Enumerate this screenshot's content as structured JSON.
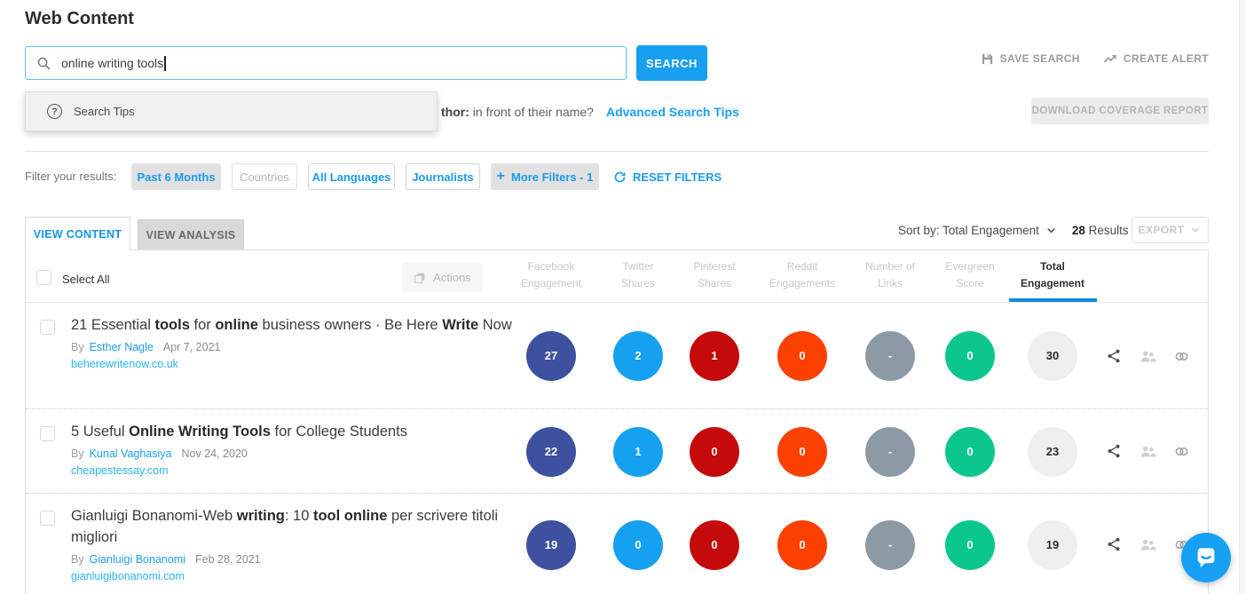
{
  "page": {
    "title": "Web Content"
  },
  "search": {
    "value": "online writing tools",
    "button": "SEARCH",
    "tips_label": "Search Tips",
    "hint_bold": "thor:",
    "hint_rest": " in front of their name?",
    "advanced_link": "Advanced Search Tips"
  },
  "header_actions": {
    "save_search": "SAVE SEARCH",
    "create_alert": "CREATE ALERT",
    "download_report": "DOWNLOAD COVERAGE REPORT"
  },
  "filters": {
    "label": "Filter your results:",
    "time": "Past 6 Months",
    "countries": "Countries",
    "languages": "All Languages",
    "journalists": "Journalists",
    "more_plus": "+",
    "more": "More Filters - 1",
    "reset": "RESET FILTERS"
  },
  "tabs": {
    "content": "VIEW CONTENT",
    "analysis": "VIEW ANALYSIS"
  },
  "toolbar": {
    "sort_label": "Sort by: Total Engagement",
    "results_count": "28",
    "results_word": "Results",
    "export": "EXPORT"
  },
  "table": {
    "select_all": "Select All",
    "actions": "Actions",
    "columns": [
      {
        "key": "facebook",
        "lines": [
          "Facebook",
          "Engagement"
        ],
        "color": "#3d519e"
      },
      {
        "key": "twitter",
        "lines": [
          "Twitter",
          "Shares"
        ],
        "color": "#15a0f0"
      },
      {
        "key": "pinterest",
        "lines": [
          "Pinterest",
          "Shares"
        ],
        "color": "#c40a0a"
      },
      {
        "key": "reddit",
        "lines": [
          "Reddit",
          "Engagements"
        ],
        "color": "#fb4000"
      },
      {
        "key": "links",
        "lines": [
          "Number of",
          "Links"
        ],
        "color": "#8b9aa4"
      },
      {
        "key": "evergreen",
        "lines": [
          "Evergreen",
          "Score"
        ],
        "color": "#0bc78e"
      },
      {
        "key": "total",
        "lines": [
          "Total",
          "Engagement"
        ],
        "color": "#efefef",
        "active": true
      }
    ],
    "rows": [
      {
        "title": [
          {
            "t": "21 Essential ",
            "b": false
          },
          {
            "t": "tools",
            "b": true
          },
          {
            "t": " for ",
            "b": false
          },
          {
            "t": "online",
            "b": true
          },
          {
            "t": " business owners · Be Here ",
            "b": false
          },
          {
            "t": "Write",
            "b": true
          },
          {
            "t": " Now",
            "b": false
          }
        ],
        "by": "By",
        "author": "Esther Nagle",
        "date": "Apr 7, 2021",
        "domain": "beherewritenow.co.uk",
        "values": [
          "27",
          "2",
          "1",
          "0",
          "-",
          "0",
          "30"
        ]
      },
      {
        "title": [
          {
            "t": "5 Useful ",
            "b": false
          },
          {
            "t": "Online Writing Tools",
            "b": true
          },
          {
            "t": " for College Students",
            "b": false
          }
        ],
        "by": "By",
        "author": "Kunal Vaghasiya",
        "date": "Nov 24, 2020",
        "domain": "cheapestessay.com",
        "values": [
          "22",
          "1",
          "0",
          "0",
          "-",
          "0",
          "23"
        ]
      },
      {
        "title": [
          {
            "t": "Gianluigi Bonanomi-Web ",
            "b": false
          },
          {
            "t": "writing",
            "b": true
          },
          {
            "t": ": 10 ",
            "b": false
          },
          {
            "t": "tool online",
            "b": true
          },
          {
            "t": " per scrivere titoli migliori",
            "b": false
          }
        ],
        "by": "By",
        "author": "Gianluigi Bonanomi",
        "date": "Feb 28, 2021",
        "domain": "gianluigibonanomi.com",
        "values": [
          "19",
          "0",
          "0",
          "0",
          "-",
          "0",
          "19"
        ]
      }
    ]
  },
  "icons": {
    "search": "magnifier",
    "save": "floppy-disk",
    "alert": "trending-arrow",
    "question": "circled-question",
    "plus": "plus",
    "reset": "refresh-arrow",
    "chevron": "chevron-down",
    "actions": "stacked-squares",
    "share": "share-nodes",
    "shared_by": "two-people",
    "backlink": "chain-links",
    "chat": "speech-bubble-smile"
  },
  "colors": {
    "accent_blue": "#189ff0",
    "filter_blue": "#1b9be9",
    "author_link": "#1e9eeb",
    "domain_link": "#29b4f0",
    "sort_underline": "#1489dc",
    "chat_widget": "#17a0f3",
    "total_circle_bg": "#efefef"
  }
}
